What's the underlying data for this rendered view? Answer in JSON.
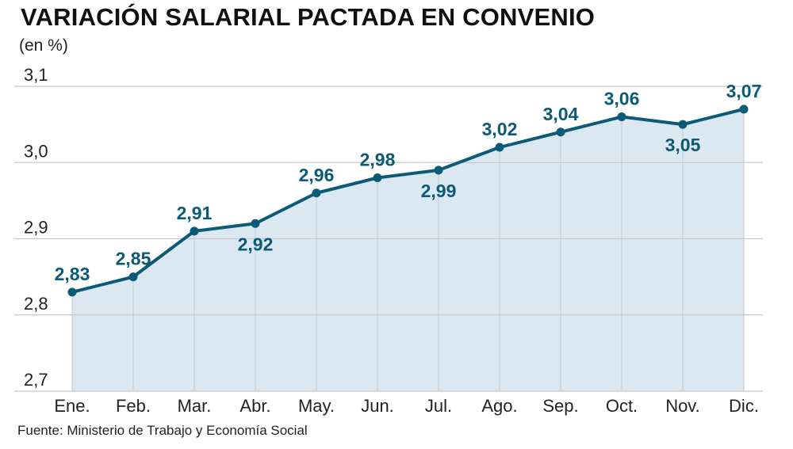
{
  "chart_data": {
    "type": "area",
    "title": "VARIACIÓN SALARIAL PACTADA EN CONVENIO",
    "ylabel": "(en %)",
    "xlabel": "",
    "categories": [
      "Ene.",
      "Feb.",
      "Mar.",
      "Abr.",
      "May.",
      "Jun.",
      "Jul.",
      "Ago.",
      "Sep.",
      "Oct.",
      "Nov.",
      "Dic."
    ],
    "values": [
      2.83,
      2.85,
      2.91,
      2.92,
      2.96,
      2.98,
      2.99,
      3.02,
      3.04,
      3.06,
      3.05,
      3.07
    ],
    "value_labels": [
      "2,83",
      "2,85",
      "2,91",
      "2,92",
      "2,96",
      "2,98",
      "2,99",
      "3,02",
      "3,04",
      "3,06",
      "3,05",
      "3,07"
    ],
    "label_positions": [
      "above",
      "above",
      "above",
      "below",
      "above",
      "above",
      "below",
      "above",
      "above",
      "above",
      "below",
      "above"
    ],
    "ylim": [
      2.7,
      3.1
    ],
    "yticks": [
      2.7,
      2.8,
      2.9,
      3.0,
      3.1
    ],
    "ytick_labels": [
      "2,7",
      "2,8",
      "2,9",
      "3,0",
      "3,1"
    ],
    "grid": true,
    "source": "Fuente: Ministerio de Trabajo y Economía Social",
    "colors": {
      "line": "#0b5a78",
      "fill": "#dce8f1",
      "label": "#0b5a78",
      "grid": "#c8c8c8"
    }
  }
}
